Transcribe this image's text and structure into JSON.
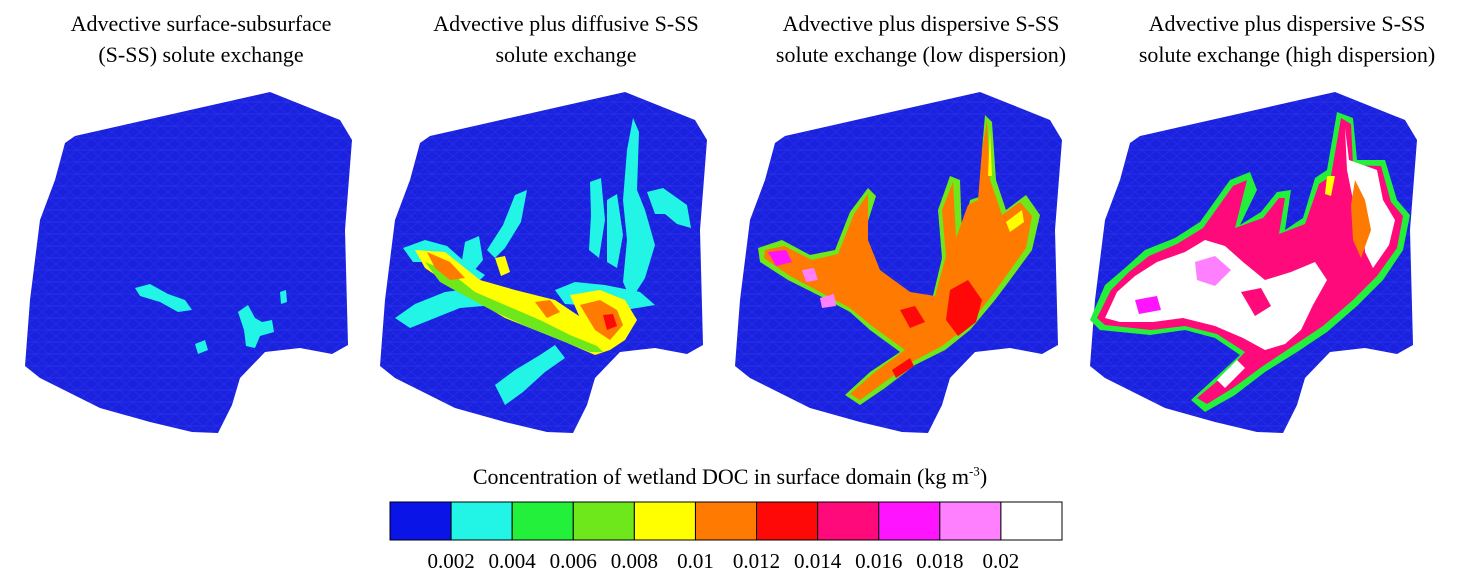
{
  "panels": [
    {
      "title_line1": "Advective surface-subsurface",
      "title_line2": "(S-SS) solute exchange",
      "case": "advective"
    },
    {
      "title_line1": "Advective plus diffusive S-SS",
      "title_line2": "solute exchange",
      "case": "diffusive"
    },
    {
      "title_line1": "Advective plus dispersive S-SS",
      "title_line2": "solute exchange (low dispersion)",
      "case": "low-dispersion"
    },
    {
      "title_line1": "Advective plus dispersive S-SS",
      "title_line2": "solute exchange (high dispersion)",
      "case": "high-dispersion"
    }
  ],
  "legend": {
    "title": "Concentration of wetland DOC in surface domain (kg m",
    "title_superscript": "-3",
    "title_close": ")",
    "colors": [
      "#0a14e6",
      "#22f5e6",
      "#22f03a",
      "#6ee81a",
      "#ffff00",
      "#ff7a00",
      "#ff0808",
      "#ff0a7a",
      "#ff14ff",
      "#ff80ff",
      "#ffffff"
    ],
    "ticks": [
      "0.002",
      "0.004",
      "0.006",
      "0.008",
      "0.01",
      "0.012",
      "0.014",
      "0.016",
      "0.018",
      "0.02"
    ]
  },
  "domain_color": "#1a22e0"
}
